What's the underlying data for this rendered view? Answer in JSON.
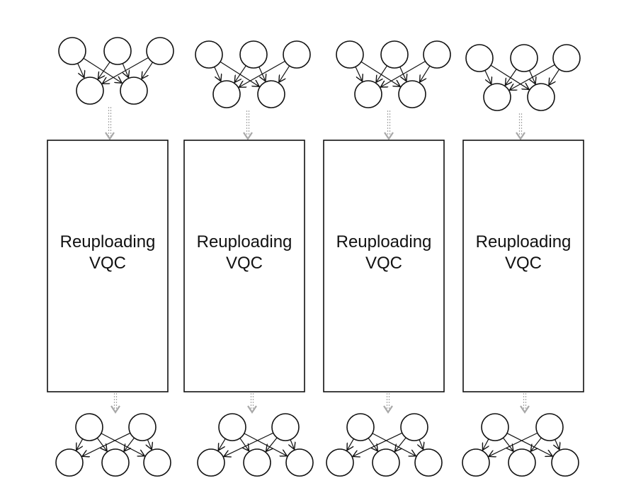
{
  "diagram": {
    "colors": {
      "stroke": "#111111",
      "flow_arrow": "#a8a8a8",
      "background": "#ffffff"
    },
    "columns": [
      {
        "box_label_line1": "Reuploading",
        "box_label_line2": "VQC",
        "input_network": {
          "top_nodes": 3,
          "bottom_nodes": 2
        },
        "output_network": {
          "top_nodes": 2,
          "bottom_nodes": 3
        }
      },
      {
        "box_label_line1": "Reuploading",
        "box_label_line2": "VQC",
        "input_network": {
          "top_nodes": 3,
          "bottom_nodes": 2
        },
        "output_network": {
          "top_nodes": 2,
          "bottom_nodes": 3
        }
      },
      {
        "box_label_line1": "Reuploading",
        "box_label_line2": "VQC",
        "input_network": {
          "top_nodes": 3,
          "bottom_nodes": 2
        },
        "output_network": {
          "top_nodes": 2,
          "bottom_nodes": 3
        }
      },
      {
        "box_label_line1": "Reuploading",
        "box_label_line2": "VQC",
        "input_network": {
          "top_nodes": 3,
          "bottom_nodes": 2
        },
        "output_network": {
          "top_nodes": 2,
          "bottom_nodes": 3
        }
      }
    ]
  }
}
